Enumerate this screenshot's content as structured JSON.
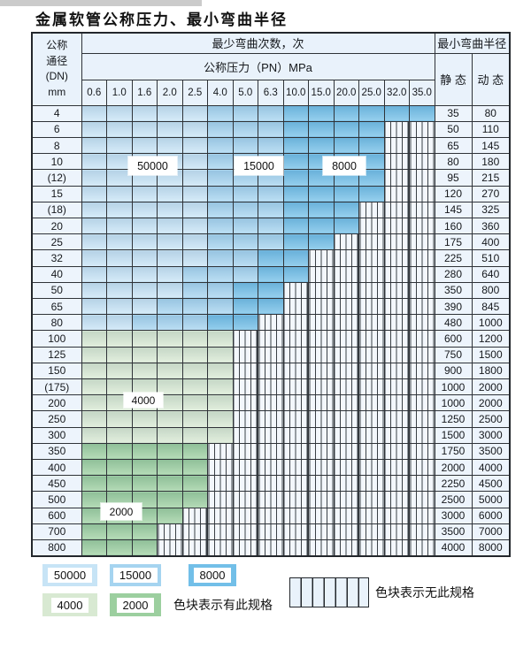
{
  "page": {
    "title": "金属软管公称压力、最小弯曲半径"
  },
  "table": {
    "dn_header_lines": [
      "公称",
      "通径",
      "(DN)",
      "mm"
    ],
    "bend_cycles_header": "最少弯曲次数，次",
    "pressure_header": "公称压力（PN）MPa",
    "radius_header": "最小弯曲半径",
    "static_label": "静 态",
    "dynamic_label": "动 态",
    "pressure_columns": [
      "0.6",
      "1.0",
      "1.6",
      "2.0",
      "2.5",
      "4.0",
      "5.0",
      "6.3",
      "10.0",
      "15.0",
      "20.0",
      "25.0",
      "32.0",
      "35.0"
    ],
    "rows": [
      {
        "dn": "4",
        "static": "35",
        "dynamic": "80",
        "cells": [
          "50000",
          "50000",
          "50000",
          "50000",
          "50000",
          "15000",
          "15000",
          "15000",
          "8000",
          "8000",
          "8000",
          "8000",
          "8000",
          "8000"
        ]
      },
      {
        "dn": "6",
        "static": "50",
        "dynamic": "110",
        "cells": [
          "50000",
          "50000",
          "50000",
          "50000",
          "50000",
          "15000",
          "15000",
          "15000",
          "8000",
          "8000",
          "8000",
          "8000",
          "none",
          "none"
        ]
      },
      {
        "dn": "8",
        "static": "65",
        "dynamic": "145",
        "cells": [
          "50000",
          "50000",
          "50000",
          "50000",
          "50000",
          "15000",
          "15000",
          "15000",
          "8000",
          "8000",
          "8000",
          "8000",
          "none",
          "none"
        ]
      },
      {
        "dn": "10",
        "static": "80",
        "dynamic": "180",
        "cells": [
          "50000",
          "50000",
          "50000",
          "50000",
          "50000",
          "15000",
          "15000",
          "15000",
          "8000",
          "8000",
          "8000",
          "8000",
          "none",
          "none"
        ]
      },
      {
        "dn": "(12)",
        "static": "95",
        "dynamic": "215",
        "cells": [
          "50000",
          "50000",
          "50000",
          "50000",
          "50000",
          "15000",
          "15000",
          "15000",
          "8000",
          "8000",
          "8000",
          "8000",
          "none",
          "none"
        ]
      },
      {
        "dn": "15",
        "static": "120",
        "dynamic": "270",
        "cells": [
          "50000",
          "50000",
          "50000",
          "50000",
          "50000",
          "15000",
          "15000",
          "15000",
          "8000",
          "8000",
          "8000",
          "8000",
          "none",
          "none"
        ]
      },
      {
        "dn": "(18)",
        "static": "145",
        "dynamic": "325",
        "cells": [
          "50000",
          "50000",
          "50000",
          "50000",
          "50000",
          "15000",
          "15000",
          "15000",
          "8000",
          "8000",
          "8000",
          "none",
          "none",
          "none"
        ]
      },
      {
        "dn": "20",
        "static": "160",
        "dynamic": "360",
        "cells": [
          "50000",
          "50000",
          "50000",
          "50000",
          "50000",
          "15000",
          "15000",
          "15000",
          "8000",
          "8000",
          "8000",
          "none",
          "none",
          "none"
        ]
      },
      {
        "dn": "25",
        "static": "175",
        "dynamic": "400",
        "cells": [
          "50000",
          "50000",
          "50000",
          "50000",
          "50000",
          "15000",
          "15000",
          "15000",
          "8000",
          "8000",
          "none",
          "none",
          "none",
          "none"
        ]
      },
      {
        "dn": "32",
        "static": "225",
        "dynamic": "510",
        "cells": [
          "50000",
          "50000",
          "50000",
          "50000",
          "50000",
          "15000",
          "15000",
          "8000",
          "8000",
          "none",
          "none",
          "none",
          "none",
          "none"
        ]
      },
      {
        "dn": "40",
        "static": "280",
        "dynamic": "640",
        "cells": [
          "50000",
          "50000",
          "50000",
          "50000",
          "15000",
          "15000",
          "15000",
          "8000",
          "8000",
          "none",
          "none",
          "none",
          "none",
          "none"
        ]
      },
      {
        "dn": "50",
        "static": "350",
        "dynamic": "800",
        "cells": [
          "50000",
          "50000",
          "50000",
          "50000",
          "15000",
          "15000",
          "8000",
          "8000",
          "none",
          "none",
          "none",
          "none",
          "none",
          "none"
        ]
      },
      {
        "dn": "65",
        "static": "390",
        "dynamic": "845",
        "cells": [
          "50000",
          "50000",
          "50000",
          "15000",
          "15000",
          "15000",
          "8000",
          "8000",
          "none",
          "none",
          "none",
          "none",
          "none",
          "none"
        ]
      },
      {
        "dn": "80",
        "static": "480",
        "dynamic": "1000",
        "cells": [
          "50000",
          "50000",
          "15000",
          "15000",
          "15000",
          "8000",
          "8000",
          "none",
          "none",
          "none",
          "none",
          "none",
          "none",
          "none"
        ]
      },
      {
        "dn": "100",
        "static": "600",
        "dynamic": "1200",
        "cells": [
          "4000",
          "4000",
          "4000",
          "4000",
          "4000",
          "4000",
          "none",
          "none",
          "none",
          "none",
          "none",
          "none",
          "none",
          "none"
        ]
      },
      {
        "dn": "125",
        "static": "750",
        "dynamic": "1500",
        "cells": [
          "4000",
          "4000",
          "4000",
          "4000",
          "4000",
          "4000",
          "none",
          "none",
          "none",
          "none",
          "none",
          "none",
          "none",
          "none"
        ]
      },
      {
        "dn": "150",
        "static": "900",
        "dynamic": "1800",
        "cells": [
          "4000",
          "4000",
          "4000",
          "4000",
          "4000",
          "4000",
          "none",
          "none",
          "none",
          "none",
          "none",
          "none",
          "none",
          "none"
        ]
      },
      {
        "dn": "(175)",
        "static": "1000",
        "dynamic": "2000",
        "cells": [
          "4000",
          "4000",
          "4000",
          "4000",
          "4000",
          "4000",
          "none",
          "none",
          "none",
          "none",
          "none",
          "none",
          "none",
          "none"
        ]
      },
      {
        "dn": "200",
        "static": "1000",
        "dynamic": "2000",
        "cells": [
          "4000",
          "4000",
          "4000",
          "4000",
          "4000",
          "4000",
          "none",
          "none",
          "none",
          "none",
          "none",
          "none",
          "none",
          "none"
        ]
      },
      {
        "dn": "250",
        "static": "1250",
        "dynamic": "2500",
        "cells": [
          "4000",
          "4000",
          "4000",
          "4000",
          "4000",
          "4000",
          "none",
          "none",
          "none",
          "none",
          "none",
          "none",
          "none",
          "none"
        ]
      },
      {
        "dn": "300",
        "static": "1500",
        "dynamic": "3000",
        "cells": [
          "4000",
          "4000",
          "4000",
          "4000",
          "4000",
          "4000",
          "none",
          "none",
          "none",
          "none",
          "none",
          "none",
          "none",
          "none"
        ]
      },
      {
        "dn": "350",
        "static": "1750",
        "dynamic": "3500",
        "cells": [
          "2000",
          "2000",
          "2000",
          "2000",
          "2000",
          "none",
          "none",
          "none",
          "none",
          "none",
          "none",
          "none",
          "none",
          "none"
        ]
      },
      {
        "dn": "400",
        "static": "2000",
        "dynamic": "4000",
        "cells": [
          "2000",
          "2000",
          "2000",
          "2000",
          "2000",
          "none",
          "none",
          "none",
          "none",
          "none",
          "none",
          "none",
          "none",
          "none"
        ]
      },
      {
        "dn": "450",
        "static": "2250",
        "dynamic": "4500",
        "cells": [
          "2000",
          "2000",
          "2000",
          "2000",
          "2000",
          "none",
          "none",
          "none",
          "none",
          "none",
          "none",
          "none",
          "none",
          "none"
        ]
      },
      {
        "dn": "500",
        "static": "2500",
        "dynamic": "5000",
        "cells": [
          "2000",
          "2000",
          "2000",
          "2000",
          "2000",
          "none",
          "none",
          "none",
          "none",
          "none",
          "none",
          "none",
          "none",
          "none"
        ]
      },
      {
        "dn": "600",
        "static": "3000",
        "dynamic": "6000",
        "cells": [
          "2000",
          "2000",
          "2000",
          "2000",
          "none",
          "none",
          "none",
          "none",
          "none",
          "none",
          "none",
          "none",
          "none",
          "none"
        ]
      },
      {
        "dn": "700",
        "static": "3500",
        "dynamic": "7000",
        "cells": [
          "2000",
          "2000",
          "2000",
          "none",
          "none",
          "none",
          "none",
          "none",
          "none",
          "none",
          "none",
          "none",
          "none",
          "none"
        ]
      },
      {
        "dn": "800",
        "static": "4000",
        "dynamic": "8000",
        "cells": [
          "2000",
          "2000",
          "2000",
          "none",
          "none",
          "none",
          "none",
          "none",
          "none",
          "none",
          "none",
          "none",
          "none",
          "none"
        ]
      }
    ]
  },
  "overlay_labels": [
    {
      "value": "50000"
    },
    {
      "value": "15000"
    },
    {
      "value": "8000"
    },
    {
      "value": "4000"
    },
    {
      "value": "2000"
    }
  ],
  "legend": {
    "swatches": [
      {
        "value": "50000"
      },
      {
        "value": "15000"
      },
      {
        "value": "8000"
      },
      {
        "value": "4000"
      },
      {
        "value": "2000"
      }
    ],
    "has_spec_note": "色块表示有此规格",
    "no_spec_note": "色块表示无此规格"
  },
  "colors": {
    "50000": "#c7e4f6",
    "15000": "#a5d4f0",
    "8000": "#72bfe8",
    "4000": "#d8e9d2",
    "2000": "#9ccf9f",
    "no_spec_bg": "#f3f7fc",
    "header_bg": "#e9f2fb",
    "grid": "#2f3338"
  }
}
